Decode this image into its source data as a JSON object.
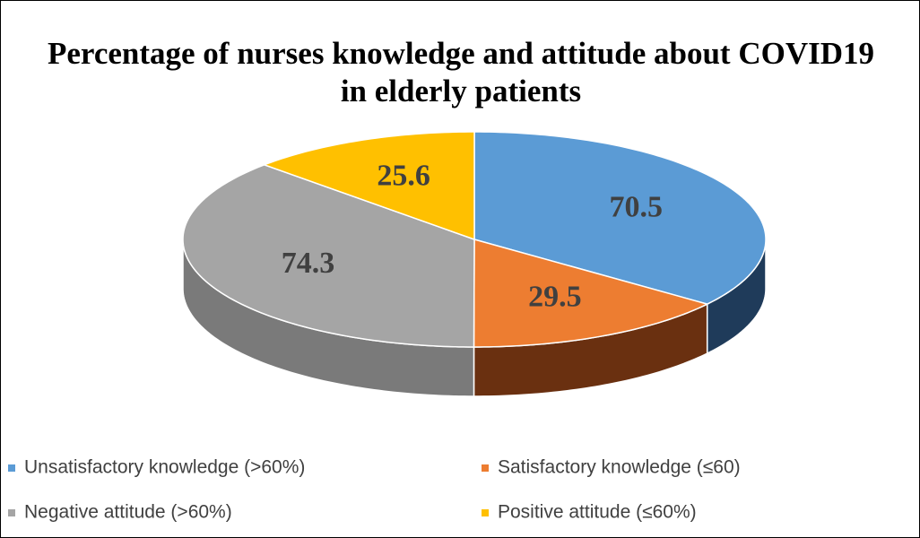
{
  "chart_data": {
    "type": "pie",
    "title": "Percentage of nurses knowledge and attitude about COVID19 in elderly patients",
    "categories": [
      "Unsatisfactory knowledge (>60%)",
      "Satisfactory knowledge (≤60)",
      "Negative attitude (>60%)",
      "Positive attitude (≤60%)"
    ],
    "values": [
      70.5,
      29.5,
      74.3,
      25.6
    ],
    "colors": [
      "#5b9bd5",
      "#ed7d31",
      "#a5a5a5",
      "#ffc000"
    ],
    "side_colors": [
      "#1f3b5a",
      "#6a3010",
      "#7a7a7a",
      "#9a7400"
    ],
    "legend": "bottom"
  }
}
